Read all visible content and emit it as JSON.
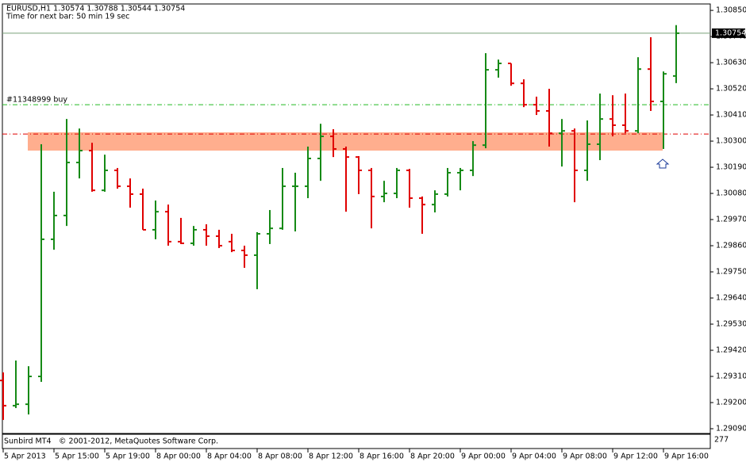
{
  "chart_data": {
    "type": "ohlc",
    "title": "EURUSD,H1  1.30574 1.30788 1.30544 1.30754",
    "subtitle": "Time for next bar: 50 min 19 sec",
    "categories": [
      "5 Apr 2013",
      null,
      null,
      null,
      "5 Apr 15:00",
      null,
      null,
      null,
      "5 Apr 19:00",
      null,
      null,
      null,
      "8 Apr 00:00",
      null,
      null,
      null,
      "8 Apr 04:00",
      null,
      null,
      null,
      "8 Apr 08:00",
      null,
      null,
      null,
      "8 Apr 12:00",
      null,
      null,
      null,
      "8 Apr 16:00",
      null,
      null,
      null,
      "8 Apr 20:00",
      null,
      null,
      null,
      "9 Apr 00:00",
      null,
      null,
      null,
      "9 Apr 04:00",
      null,
      null,
      null,
      "9 Apr 08:00",
      null,
      null,
      null,
      "9 Apr 12:00",
      null,
      null,
      null,
      "9 Apr 16:00",
      null
    ],
    "open": [
      1.29293,
      1.29187,
      1.29193,
      1.2931,
      1.29887,
      1.29987,
      1.3021,
      1.3026,
      1.30093,
      1.30177,
      1.3011,
      1.30077,
      1.29927,
      1.30003,
      1.29877,
      1.2987,
      1.29927,
      1.299,
      1.29877,
      1.2984,
      1.2982,
      1.2991,
      1.29933,
      1.3011,
      1.3011,
      1.30227,
      1.3032,
      1.30267,
      1.30233,
      1.30177,
      1.30067,
      1.3008,
      1.30177,
      1.3006,
      1.30033,
      1.30077,
      1.30167,
      1.30177,
      1.30283,
      1.306,
      1.30627,
      1.30543,
      1.30453,
      1.30427,
      1.30333,
      1.30343,
      1.30177,
      1.30287,
      1.30393,
      1.30367,
      1.30343,
      1.30603,
      1.30467,
      1.30574
    ],
    "high": [
      1.29327,
      1.29377,
      1.29353,
      1.30287,
      1.30087,
      1.30393,
      1.30353,
      1.30293,
      1.30243,
      1.30187,
      1.30143,
      1.301,
      1.3005,
      1.30033,
      1.29977,
      1.29943,
      1.2995,
      1.29927,
      1.2991,
      1.2986,
      1.29917,
      1.3001,
      1.30187,
      1.30167,
      1.30277,
      1.30373,
      1.3035,
      1.30277,
      1.30237,
      1.30187,
      1.30133,
      1.30187,
      1.30183,
      1.30067,
      1.30093,
      1.30187,
      1.30187,
      1.303,
      1.3067,
      1.30643,
      1.30627,
      1.3056,
      1.30487,
      1.3052,
      1.30393,
      1.30353,
      1.30387,
      1.305,
      1.30493,
      1.305,
      1.30653,
      1.30737,
      1.30593,
      1.30788
    ],
    "low": [
      1.29127,
      1.29177,
      1.2915,
      1.29287,
      1.29843,
      1.29943,
      1.30143,
      1.30087,
      1.30087,
      1.301,
      1.3002,
      1.29927,
      1.29887,
      1.2986,
      1.29867,
      1.2986,
      1.2986,
      1.2985,
      1.29833,
      1.29767,
      1.29677,
      1.29867,
      1.29927,
      1.2992,
      1.3006,
      1.30133,
      1.30233,
      1.30003,
      1.30077,
      1.29933,
      1.30043,
      1.3006,
      1.3002,
      1.2991,
      1.3,
      1.30067,
      1.30093,
      1.30153,
      1.3027,
      1.30567,
      1.30533,
      1.30443,
      1.3041,
      1.30277,
      1.30193,
      1.30043,
      1.30133,
      1.3022,
      1.3032,
      1.30333,
      1.30333,
      1.30427,
      1.30267,
      1.30544
    ],
    "close": [
      1.29187,
      1.29193,
      1.2931,
      1.29887,
      1.29987,
      1.3021,
      1.3026,
      1.30093,
      1.30177,
      1.3011,
      1.30077,
      1.29927,
      1.30003,
      1.29877,
      1.2987,
      1.29927,
      1.299,
      1.2986,
      1.2984,
      1.2982,
      1.2991,
      1.29933,
      1.3011,
      1.3011,
      1.30227,
      1.3032,
      1.30267,
      1.30233,
      1.30177,
      1.30067,
      1.3008,
      1.30177,
      1.3006,
      1.30033,
      1.30077,
      1.30167,
      1.30177,
      1.30283,
      1.306,
      1.30627,
      1.30543,
      1.30453,
      1.30427,
      1.30333,
      1.30343,
      1.30177,
      1.30287,
      1.30393,
      1.30367,
      1.30343,
      1.30603,
      1.30467,
      1.30583,
      1.30754
    ],
    "up_color": "#168a16",
    "down_color": "#e00000",
    "ylim": [
      1.2907,
      1.30877
    ],
    "yticks": [
      {
        "value": 1.3085,
        "label": "1.30850"
      },
      {
        "value": 1.3074,
        "label": "1.30740"
      },
      {
        "value": 1.3063,
        "label": "1.30630"
      },
      {
        "value": 1.3052,
        "label": "1.30520"
      },
      {
        "value": 1.3041,
        "label": "1.30410"
      },
      {
        "value": 1.303,
        "label": "1.30300"
      },
      {
        "value": 1.3019,
        "label": "1.30190"
      },
      {
        "value": 1.3008,
        "label": "1.30080"
      },
      {
        "value": 1.2997,
        "label": "1.29970"
      },
      {
        "value": 1.2986,
        "label": "1.29860"
      },
      {
        "value": 1.2975,
        "label": "1.29750"
      },
      {
        "value": 1.2964,
        "label": "1.29640"
      },
      {
        "value": 1.2953,
        "label": "1.29530"
      },
      {
        "value": 1.2942,
        "label": "1.29420"
      },
      {
        "value": 1.2931,
        "label": "1.29310"
      },
      {
        "value": 1.292,
        "label": "1.29200"
      },
      {
        "value": 1.2909,
        "label": "1.29090"
      }
    ],
    "levels": [
      {
        "label": "#11348999 buy",
        "value": 1.30453,
        "color": "#22bb22"
      },
      {
        "value": 1.3033,
        "color": "#e00000"
      }
    ],
    "zone": {
      "low": 1.3026,
      "high": 1.30337,
      "color": "#ffa07a"
    },
    "price_line_color": "#7aa07a",
    "indicator_label": "277",
    "footer": {
      "name": "Sunbird MT4",
      "copyright": "© 2001-2012, MetaQuotes Software Corp."
    }
  }
}
